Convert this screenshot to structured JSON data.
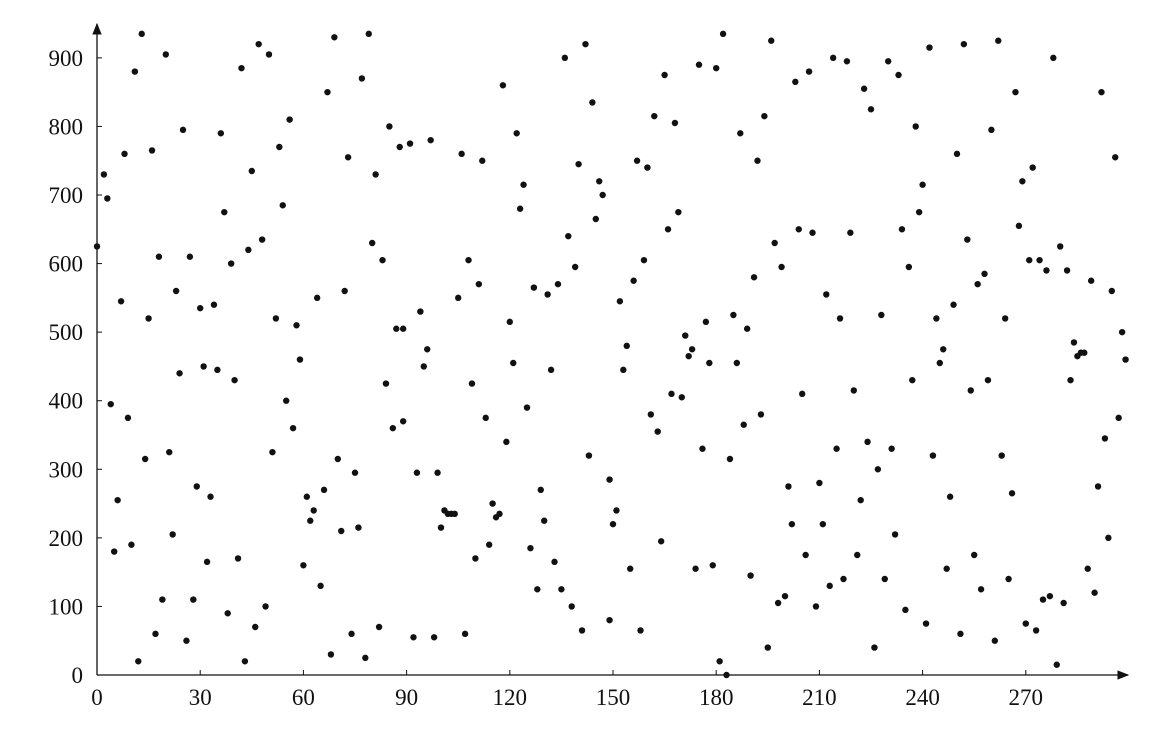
{
  "chart_data": {
    "type": "scatter",
    "x": [
      0,
      2,
      3,
      4,
      5,
      6,
      7,
      8,
      9,
      10,
      11,
      12,
      13,
      14,
      15,
      16,
      17,
      18,
      19,
      20,
      21,
      22,
      23,
      24,
      25,
      26,
      27,
      28,
      29,
      30,
      31,
      32,
      33,
      34,
      35,
      36,
      37,
      38,
      39,
      40,
      41,
      42,
      43,
      44,
      45,
      46,
      47,
      48,
      49,
      50,
      51,
      52,
      53,
      54,
      55,
      56,
      57,
      58,
      59,
      60,
      61,
      62,
      63,
      64,
      65,
      66,
      67,
      68,
      69,
      70,
      71,
      72,
      73,
      74,
      75,
      76,
      77,
      78,
      79,
      80,
      81,
      82,
      83,
      84,
      85,
      86,
      87,
      88,
      89,
      89,
      91,
      92,
      93,
      94,
      95,
      96,
      97,
      98,
      99,
      100,
      101,
      102,
      103,
      104,
      105,
      106,
      107,
      108,
      109,
      110,
      111,
      112,
      113,
      114,
      115,
      116,
      117,
      118,
      119,
      120,
      121,
      122,
      123,
      124,
      125,
      126,
      127,
      128,
      129,
      130,
      131,
      132,
      133,
      134,
      135,
      136,
      137,
      138,
      139,
      140,
      141,
      142,
      143,
      144,
      145,
      146,
      147,
      149,
      149,
      150,
      151,
      152,
      153,
      154,
      155,
      156,
      157,
      158,
      159,
      160,
      161,
      162,
      163,
      164,
      165,
      166,
      167,
      168,
      169,
      170,
      171,
      172,
      173,
      174,
      175,
      176,
      177,
      178,
      179,
      180,
      181,
      182,
      183,
      184,
      185,
      186,
      187,
      188,
      189,
      190,
      191,
      192,
      193,
      194,
      195,
      196,
      197,
      198,
      199,
      200,
      201,
      202,
      203,
      204,
      205,
      206,
      207,
      208,
      209,
      210,
      211,
      212,
      213,
      214,
      215,
      216,
      217,
      218,
      219,
      220,
      221,
      222,
      223,
      224,
      225,
      226,
      227,
      228,
      229,
      230,
      231,
      232,
      233,
      234,
      235,
      236,
      237,
      238,
      239,
      240,
      241,
      242,
      243,
      244,
      245,
      246,
      247,
      248,
      249,
      250,
      251,
      252,
      253,
      254,
      255,
      256,
      257,
      258,
      259,
      260,
      261,
      262,
      263,
      264,
      265,
      266,
      267,
      268,
      269,
      270,
      271,
      272,
      273,
      274,
      275,
      276,
      277,
      278,
      279,
      280,
      281,
      282,
      283,
      284,
      285,
      286,
      287,
      288,
      289,
      290,
      291,
      292,
      293,
      294,
      295,
      296,
      297,
      298,
      299
    ],
    "y": [
      625,
      730,
      695,
      395,
      180,
      255,
      545,
      760,
      375,
      190,
      880,
      20,
      935,
      315,
      520,
      765,
      60,
      610,
      110,
      905,
      325,
      205,
      560,
      440,
      795,
      50,
      610,
      110,
      275,
      535,
      450,
      165,
      260,
      540,
      445,
      790,
      675,
      90,
      600,
      430,
      170,
      885,
      20,
      620,
      735,
      70,
      920,
      635,
      100,
      905,
      325,
      520,
      770,
      685,
      400,
      810,
      360,
      510,
      460,
      160,
      260,
      225,
      240,
      550,
      130,
      270,
      850,
      30,
      930,
      315,
      210,
      560,
      755,
      60,
      295,
      215,
      870,
      25,
      935,
      630,
      730,
      70,
      605,
      425,
      800,
      360,
      505,
      770,
      370,
      505,
      775,
      55,
      295,
      530,
      450,
      475,
      780,
      55,
      295,
      215,
      240,
      235,
      235,
      235,
      550,
      760,
      60,
      605,
      425,
      170,
      570,
      750,
      375,
      190,
      250,
      230,
      235,
      860,
      340,
      515,
      455,
      790,
      680,
      715,
      390,
      185,
      565,
      125,
      270,
      225,
      555,
      445,
      165,
      570,
      125,
      900,
      640,
      100,
      595,
      745,
      65,
      920,
      320,
      835,
      665,
      720,
      700,
      80,
      285,
      220,
      240,
      545,
      445,
      480,
      155,
      575,
      750,
      65,
      605,
      740,
      380,
      815,
      355,
      195,
      875,
      650,
      410,
      805,
      675,
      405,
      495,
      465,
      475,
      155,
      890,
      330,
      515,
      455,
      160,
      885,
      20,
      935,
      0,
      315,
      525,
      455,
      790,
      365,
      505,
      145,
      580,
      750,
      380,
      815,
      40,
      925,
      630,
      105,
      595,
      115,
      275,
      220,
      865,
      650,
      410,
      175,
      880,
      645,
      100,
      280,
      220,
      555,
      130,
      900,
      330,
      520,
      140,
      895,
      645,
      415,
      175,
      255,
      855,
      340,
      825,
      40,
      300,
      525,
      140,
      895,
      330,
      205,
      875,
      650,
      95,
      595,
      430,
      800,
      675,
      715,
      75,
      915,
      320,
      520,
      455,
      475,
      155,
      260,
      540,
      760,
      60,
      920,
      635,
      415,
      175,
      570,
      125,
      585,
      430,
      795,
      50,
      925,
      320,
      520,
      140,
      265,
      850,
      655,
      720,
      75,
      605,
      740,
      65,
      605,
      110,
      590,
      115,
      900,
      15,
      625,
      105,
      590,
      430,
      485,
      465,
      470,
      470,
      155,
      575,
      120,
      275,
      850,
      345,
      200,
      560,
      755,
      375,
      500,
      460
    ],
    "xlim": [
      0,
      300
    ],
    "ylim": [
      0,
      945
    ],
    "xticks": [
      0,
      30,
      60,
      90,
      120,
      150,
      180,
      210,
      240,
      270
    ],
    "yticks": [
      0,
      100,
      200,
      300,
      400,
      500,
      600,
      700,
      800,
      900
    ],
    "color": "#111111",
    "grid": false
  }
}
